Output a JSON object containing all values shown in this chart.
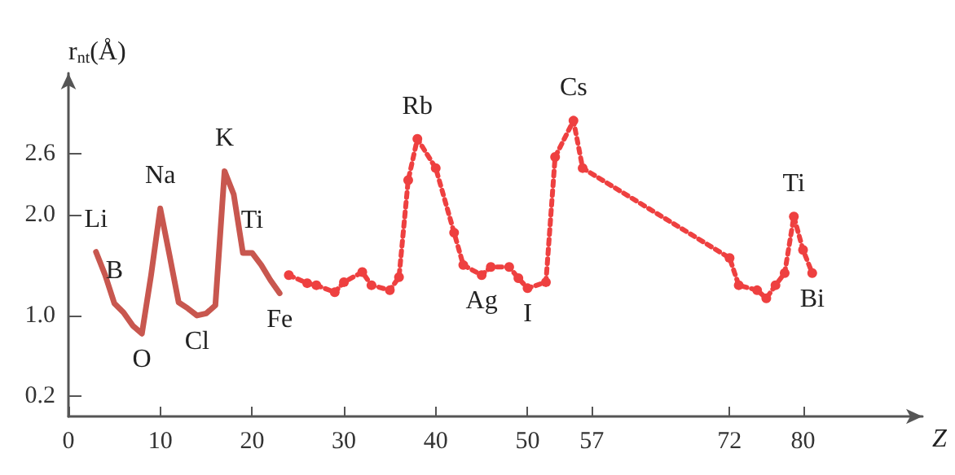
{
  "chart_data": {
    "type": "line",
    "xlabel": "Z",
    "ylabel": "r$_{nt}$(Å)",
    "xlim": [
      0,
      93
    ],
    "xticks": [
      0,
      10,
      20,
      30,
      40,
      50,
      57,
      72,
      80
    ],
    "ylim": [
      0,
      3.4
    ],
    "yticks": [
      {
        "value": 0.2,
        "label": "0.2"
      },
      {
        "value": 1,
        "label": "1.0"
      },
      {
        "value": 2,
        "label": "2.0"
      },
      {
        "value": 2.6,
        "label": "2.6"
      }
    ],
    "series": [
      {
        "color": "#c8574f",
        "line_style": "solid",
        "marker": "none",
        "x": [
          3,
          4,
          5,
          6,
          7,
          8,
          9,
          10,
          11,
          12,
          13,
          14,
          15,
          16,
          17,
          18,
          19,
          20,
          21,
          22,
          23
        ],
        "values": [
          1.63,
          1.4,
          1.12,
          1.03,
          0.9,
          0.82,
          1.4,
          2.06,
          1.6,
          1.13,
          1.07,
          1.0,
          1.02,
          1.1,
          2.43,
          2.2,
          1.62,
          1.62,
          1.5,
          1.35,
          1.22
        ]
      },
      {
        "color": "#ee4040",
        "line_style": "dotted",
        "marker": "circle",
        "x": [
          24,
          26,
          27,
          29,
          30,
          32,
          33,
          35,
          36,
          37,
          38,
          40,
          42,
          43,
          45,
          46,
          48,
          49,
          50,
          52,
          53,
          55,
          56,
          72,
          73,
          75,
          76,
          77,
          78,
          79,
          80,
          81
        ],
        "values": [
          1.4,
          1.32,
          1.3,
          1.23,
          1.33,
          1.43,
          1.3,
          1.25,
          1.38,
          2.34,
          2.75,
          2.46,
          1.82,
          1.5,
          1.4,
          1.48,
          1.48,
          1.37,
          1.27,
          1.33,
          2.57,
          2.93,
          2.46,
          1.57,
          1.3,
          1.25,
          1.17,
          1.3,
          1.42,
          1.98,
          1.65,
          1.42
        ]
      }
    ],
    "annotations": [
      {
        "text": "Li",
        "x": 3,
        "y": 1.63
      },
      {
        "text": "B",
        "x": 5,
        "y": 1.12
      },
      {
        "text": "Na",
        "x": 10,
        "y": 2.06
      },
      {
        "text": "K",
        "x": 17,
        "y": 2.43
      },
      {
        "text": "Cl",
        "x": 14,
        "y": 1.0
      },
      {
        "text": "Ti",
        "x": 20,
        "y": 1.62
      },
      {
        "text": "O",
        "x": 8,
        "y": 0.82
      },
      {
        "text": "Fe",
        "x": 23,
        "y": 1.22
      },
      {
        "text": "Rb",
        "x": 38,
        "y": 2.75
      },
      {
        "text": "Ag",
        "x": 45,
        "y": 1.4
      },
      {
        "text": "I",
        "x": 50,
        "y": 1.27
      },
      {
        "text": "Cs",
        "x": 55,
        "y": 2.93
      },
      {
        "text": "Ti",
        "x": 79,
        "y": 1.98
      },
      {
        "text": "Bi",
        "x": 81,
        "y": 1.42
      }
    ]
  }
}
